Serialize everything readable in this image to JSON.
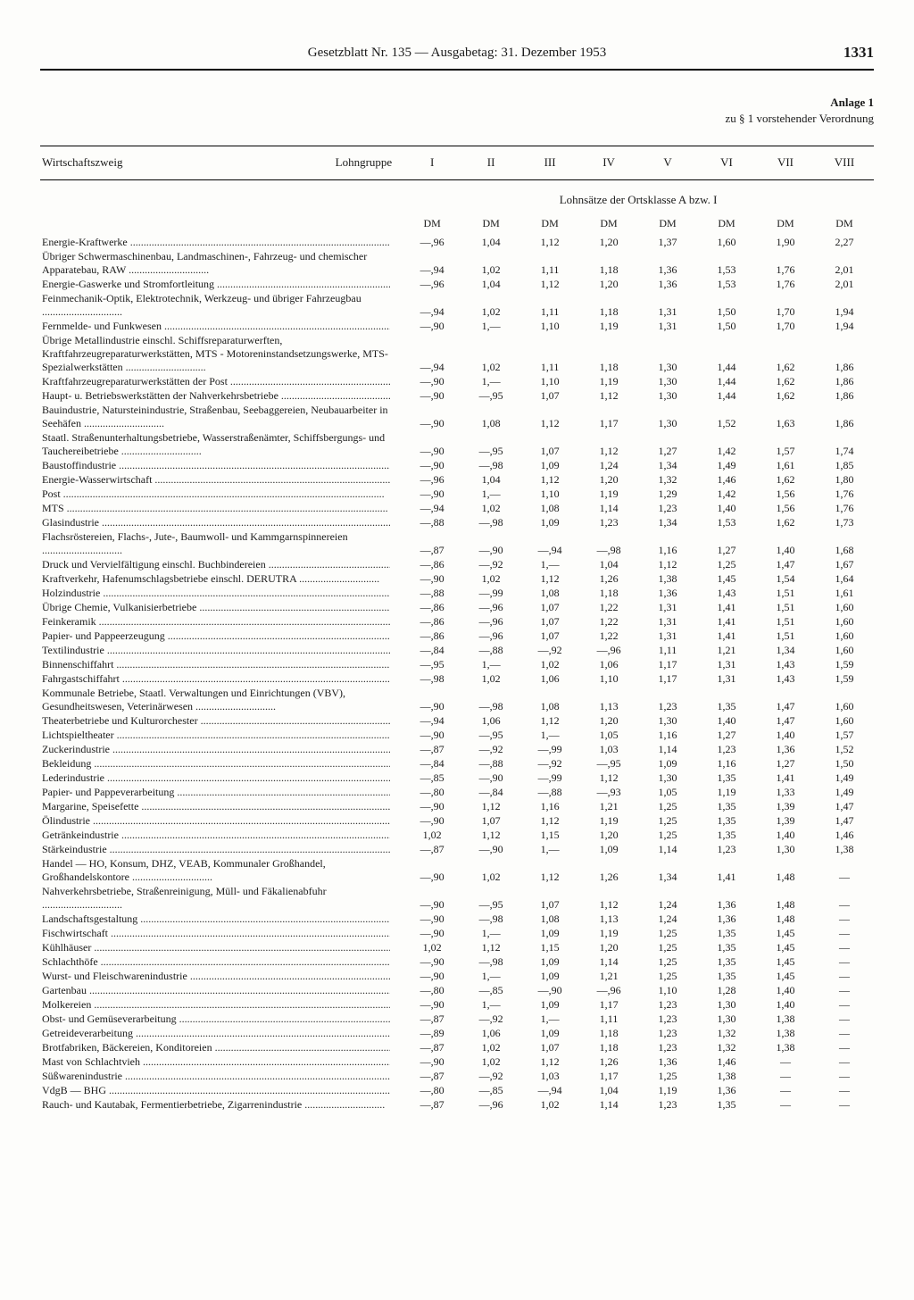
{
  "header": "Gesetzblatt Nr. 135 — Ausgabetag: 31. Dezember 1953",
  "page_number": "1331",
  "anlage_title": "Anlage 1",
  "anlage_sub": "zu § 1 vorstehender Verordnung",
  "col_label_left": "Wirtschaftszweig",
  "col_label_right": "Lohngruppe",
  "roman": [
    "I",
    "II",
    "III",
    "IV",
    "V",
    "VI",
    "VII",
    "VIII"
  ],
  "subheading": "Lohnsätze der Ortsklasse A bzw. I",
  "dm": "DM",
  "rows": [
    {
      "label": "Energie-Kraftwerke",
      "v": [
        "—,96",
        "1,04",
        "1,12",
        "1,20",
        "1,37",
        "1,60",
        "1,90",
        "2,27"
      ]
    },
    {
      "label": "Übriger Schwermaschinenbau, Landmaschinen-, Fahrzeug- und chemischer Apparatebau, RAW",
      "multi": true,
      "v": [
        "—,94",
        "1,02",
        "1,11",
        "1,18",
        "1,36",
        "1,53",
        "1,76",
        "2,01"
      ]
    },
    {
      "label": "Energie-Gaswerke und Stromfortleitung",
      "v": [
        "—,96",
        "1,04",
        "1,12",
        "1,20",
        "1,36",
        "1,53",
        "1,76",
        "2,01"
      ]
    },
    {
      "label": "Feinmechanik-Optik, Elektrotechnik, Werkzeug- und übriger Fahrzeugbau",
      "multi": true,
      "v": [
        "—,94",
        "1,02",
        "1,11",
        "1,18",
        "1,31",
        "1,50",
        "1,70",
        "1,94"
      ]
    },
    {
      "label": "Fernmelde- und Funkwesen",
      "v": [
        "—,90",
        "1,—",
        "1,10",
        "1,19",
        "1,31",
        "1,50",
        "1,70",
        "1,94"
      ]
    },
    {
      "label": "Übrige Metallindustrie einschl. Schiffsreparaturwerften, Kraftfahrzeugreparaturwerkstätten, MTS - Motoreninstandsetzungswerke, MTS-Spezialwerkstätten",
      "multi": true,
      "v": [
        "—,94",
        "1,02",
        "1,11",
        "1,18",
        "1,30",
        "1,44",
        "1,62",
        "1,86"
      ]
    },
    {
      "label": "Kraftfahrzeugreparaturwerkstätten der Post",
      "v": [
        "—,90",
        "1,—",
        "1,10",
        "1,19",
        "1,30",
        "1,44",
        "1,62",
        "1,86"
      ]
    },
    {
      "label": "Haupt- u. Betriebswerkstätten der Nahverkehrsbetriebe",
      "v": [
        "—,90",
        "—,95",
        "1,07",
        "1,12",
        "1,30",
        "1,44",
        "1,62",
        "1,86"
      ]
    },
    {
      "label": "Bauindustrie, Natursteinindustrie, Straßenbau, Seebaggereien, Neubauarbeiter in Seehäfen",
      "multi": true,
      "v": [
        "—,90",
        "1,08",
        "1,12",
        "1,17",
        "1,30",
        "1,52",
        "1,63",
        "1,86"
      ]
    },
    {
      "label": "Staatl. Straßenunterhaltungsbetriebe, Wasserstraßenämter, Schiffsbergungs- und Tauchereibetriebe",
      "multi": true,
      "v": [
        "—,90",
        "—,95",
        "1,07",
        "1,12",
        "1,27",
        "1,42",
        "1,57",
        "1,74"
      ]
    },
    {
      "label": "Baustoffindustrie",
      "v": [
        "—,90",
        "—,98",
        "1,09",
        "1,24",
        "1,34",
        "1,49",
        "1,61",
        "1,85"
      ]
    },
    {
      "label": "Energie-Wasserwirtschaft",
      "v": [
        "—,96",
        "1,04",
        "1,12",
        "1,20",
        "1,32",
        "1,46",
        "1,62",
        "1,80"
      ]
    },
    {
      "label": "Post",
      "v": [
        "—,90",
        "1,—",
        "1,10",
        "1,19",
        "1,29",
        "1,42",
        "1,56",
        "1,76"
      ]
    },
    {
      "label": "MTS",
      "v": [
        "—,94",
        "1,02",
        "1,08",
        "1,14",
        "1,23",
        "1,40",
        "1,56",
        "1,76"
      ]
    },
    {
      "label": "Glasindustrie",
      "v": [
        "—,88",
        "—,98",
        "1,09",
        "1,23",
        "1,34",
        "1,53",
        "1,62",
        "1,73"
      ]
    },
    {
      "label": "Flachsröstereien, Flachs-, Jute-, Baumwoll- und Kammgarnspinnereien",
      "multi": true,
      "v": [
        "—,87",
        "—,90",
        "—,94",
        "—,98",
        "1,16",
        "1,27",
        "1,40",
        "1,68"
      ]
    },
    {
      "label": "Druck und Vervielfältigung einschl. Buchbindereien",
      "v": [
        "—,86",
        "—,92",
        "1,—",
        "1,04",
        "1,12",
        "1,25",
        "1,47",
        "1,67"
      ]
    },
    {
      "label": "Kraftverkehr, Hafenumschlagsbetriebe einschl. DERUTRA",
      "multi": true,
      "v": [
        "—,90",
        "1,02",
        "1,12",
        "1,26",
        "1,38",
        "1,45",
        "1,54",
        "1,64"
      ]
    },
    {
      "label": "Holzindustrie",
      "v": [
        "—,88",
        "—,99",
        "1,08",
        "1,18",
        "1,36",
        "1,43",
        "1,51",
        "1,61"
      ]
    },
    {
      "label": "Übrige Chemie, Vulkanisierbetriebe",
      "v": [
        "—,86",
        "—,96",
        "1,07",
        "1,22",
        "1,31",
        "1,41",
        "1,51",
        "1,60"
      ]
    },
    {
      "label": "Feinkeramik",
      "v": [
        "—,86",
        "—,96",
        "1,07",
        "1,22",
        "1,31",
        "1,41",
        "1,51",
        "1,60"
      ]
    },
    {
      "label": "Papier- und Pappeerzeugung",
      "v": [
        "—,86",
        "—,96",
        "1,07",
        "1,22",
        "1,31",
        "1,41",
        "1,51",
        "1,60"
      ]
    },
    {
      "label": "Textilindustrie",
      "v": [
        "—,84",
        "—,88",
        "—,92",
        "—,96",
        "1,11",
        "1,21",
        "1,34",
        "1,60"
      ]
    },
    {
      "label": "Binnenschiffahrt",
      "v": [
        "—,95",
        "1,—",
        "1,02",
        "1,06",
        "1,17",
        "1,31",
        "1,43",
        "1,59"
      ]
    },
    {
      "label": "Fahrgastschiffahrt",
      "v": [
        "—,98",
        "1,02",
        "1,06",
        "1,10",
        "1,17",
        "1,31",
        "1,43",
        "1,59"
      ]
    },
    {
      "label": "Kommunale Betriebe, Staatl. Verwaltungen und Einrichtungen (VBV), Gesundheitswesen, Veterinärwesen",
      "multi": true,
      "v": [
        "—,90",
        "—,98",
        "1,08",
        "1,13",
        "1,23",
        "1,35",
        "1,47",
        "1,60"
      ]
    },
    {
      "label": "Theaterbetriebe und Kulturorchester",
      "v": [
        "—,94",
        "1,06",
        "1,12",
        "1,20",
        "1,30",
        "1,40",
        "1,47",
        "1,60"
      ]
    },
    {
      "label": "Lichtspieltheater",
      "v": [
        "—,90",
        "—,95",
        "1,—",
        "1,05",
        "1,16",
        "1,27",
        "1,40",
        "1,57"
      ]
    },
    {
      "label": "Zuckerindustrie",
      "v": [
        "—,87",
        "—,92",
        "—,99",
        "1,03",
        "1,14",
        "1,23",
        "1,36",
        "1,52"
      ]
    },
    {
      "label": "Bekleidung",
      "v": [
        "—,84",
        "—,88",
        "—,92",
        "—,95",
        "1,09",
        "1,16",
        "1,27",
        "1,50"
      ]
    },
    {
      "label": "Lederindustrie",
      "v": [
        "—,85",
        "—,90",
        "—,99",
        "1,12",
        "1,30",
        "1,35",
        "1,41",
        "1,49"
      ]
    },
    {
      "label": "Papier- und Pappeverarbeitung",
      "v": [
        "—,80",
        "—,84",
        "—,88",
        "—,93",
        "1,05",
        "1,19",
        "1,33",
        "1,49"
      ]
    },
    {
      "label": "Margarine, Speisefette",
      "v": [
        "—,90",
        "1,12",
        "1,16",
        "1,21",
        "1,25",
        "1,35",
        "1,39",
        "1,47"
      ]
    },
    {
      "label": "Ölindustrie",
      "v": [
        "—,90",
        "1,07",
        "1,12",
        "1,19",
        "1,25",
        "1,35",
        "1,39",
        "1,47"
      ]
    },
    {
      "label": "Getränkeindustrie",
      "v": [
        "1,02",
        "1,12",
        "1,15",
        "1,20",
        "1,25",
        "1,35",
        "1,40",
        "1,46"
      ]
    },
    {
      "label": "Stärkeindustrie",
      "v": [
        "—,87",
        "—,90",
        "1,—",
        "1,09",
        "1,14",
        "1,23",
        "1,30",
        "1,38"
      ]
    },
    {
      "label": "Handel — HO, Konsum, DHZ, VEAB, Kommunaler Großhandel, Großhandelskontore",
      "multi": true,
      "v": [
        "—,90",
        "1,02",
        "1,12",
        "1,26",
        "1,34",
        "1,41",
        "1,48",
        "—"
      ]
    },
    {
      "label": "Nahverkehrsbetriebe, Straßenreinigung, Müll- und Fäkalienabfuhr",
      "multi": true,
      "v": [
        "—,90",
        "—,95",
        "1,07",
        "1,12",
        "1,24",
        "1,36",
        "1,48",
        "—"
      ]
    },
    {
      "label": "Landschaftsgestaltung",
      "v": [
        "—,90",
        "—,98",
        "1,08",
        "1,13",
        "1,24",
        "1,36",
        "1,48",
        "—"
      ]
    },
    {
      "label": "Fischwirtschaft",
      "v": [
        "—,90",
        "1,—",
        "1,09",
        "1,19",
        "1,25",
        "1,35",
        "1,45",
        "—"
      ]
    },
    {
      "label": "Kühlhäuser",
      "v": [
        "1,02",
        "1,12",
        "1,15",
        "1,20",
        "1,25",
        "1,35",
        "1,45",
        "—"
      ]
    },
    {
      "label": "Schlachthöfe",
      "v": [
        "—,90",
        "—,98",
        "1,09",
        "1,14",
        "1,25",
        "1,35",
        "1,45",
        "—"
      ]
    },
    {
      "label": "Wurst- und Fleischwarenindustrie",
      "v": [
        "—,90",
        "1,—",
        "1,09",
        "1,21",
        "1,25",
        "1,35",
        "1,45",
        "—"
      ]
    },
    {
      "label": "Gartenbau",
      "v": [
        "—,80",
        "—,85",
        "—,90",
        "—,96",
        "1,10",
        "1,28",
        "1,40",
        "—"
      ]
    },
    {
      "label": "Molkereien",
      "v": [
        "—,90",
        "1,—",
        "1,09",
        "1,17",
        "1,23",
        "1,30",
        "1,40",
        "—"
      ]
    },
    {
      "label": "Obst- und Gemüseverarbeitung",
      "v": [
        "—,87",
        "—,92",
        "1,—",
        "1,11",
        "1,23",
        "1,30",
        "1,38",
        "—"
      ]
    },
    {
      "label": "Getreideverarbeitung",
      "v": [
        "—,89",
        "1,06",
        "1,09",
        "1,18",
        "1,23",
        "1,32",
        "1,38",
        "—"
      ]
    },
    {
      "label": "Brotfabriken, Bäckereien, Konditoreien",
      "v": [
        "—,87",
        "1,02",
        "1,07",
        "1,18",
        "1,23",
        "1,32",
        "1,38",
        "—"
      ]
    },
    {
      "label": "Mast von Schlachtvieh",
      "v": [
        "—,90",
        "1,02",
        "1,12",
        "1,26",
        "1,36",
        "1,46",
        "—",
        "—"
      ]
    },
    {
      "label": "Süßwarenindustrie",
      "v": [
        "—,87",
        "—,92",
        "1,03",
        "1,17",
        "1,25",
        "1,38",
        "—",
        "—"
      ]
    },
    {
      "label": "VdgB — BHG",
      "v": [
        "—,80",
        "—,85",
        "—,94",
        "1,04",
        "1,19",
        "1,36",
        "—",
        "—"
      ]
    },
    {
      "label": "Rauch- und Kautabak, Fermentierbetriebe, Zigarrenindustrie",
      "multi": true,
      "v": [
        "—,87",
        "—,96",
        "1,02",
        "1,14",
        "1,23",
        "1,35",
        "—",
        "—"
      ]
    }
  ]
}
